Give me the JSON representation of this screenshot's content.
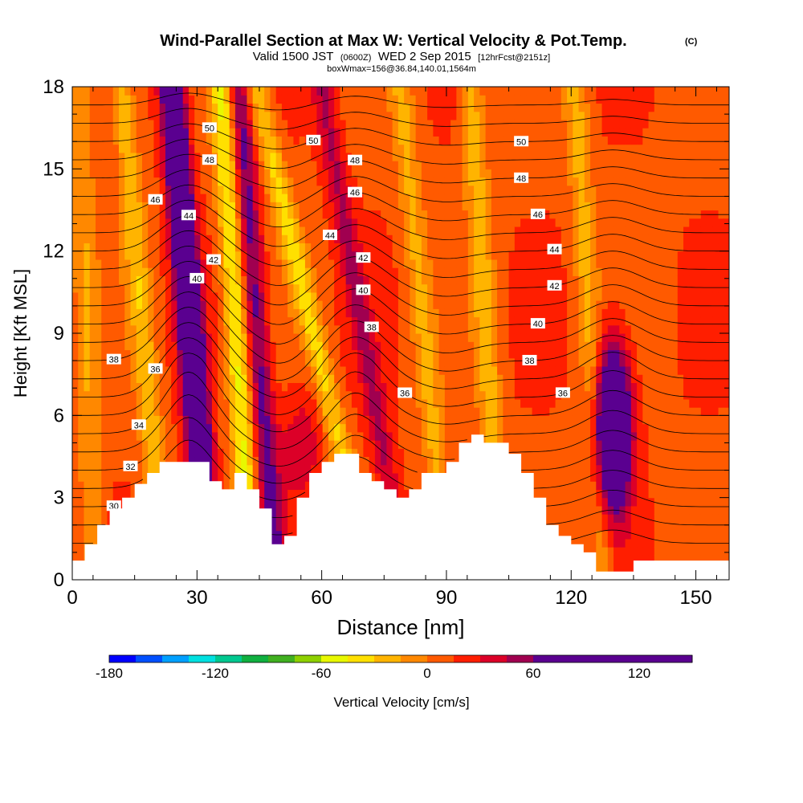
{
  "chart_data": {
    "type": "heatmap",
    "title": "Wind-Parallel Section at Max W: Vertical Velocity & Pot.Temp.",
    "title_mark": "(C)",
    "subtitle": {
      "valid": "Valid 1500 JST",
      "utc": "(0600Z)",
      "date": "WED 2 Sep 2015",
      "fcst": "[12hrFcst@2151z]"
    },
    "box_info": "boxWmax=156@36.84,140.01,1564m",
    "xlabel": "Distance [nm]",
    "ylabel": "Height [Kft MSL]",
    "xlim": [
      0,
      158
    ],
    "ylim": [
      0,
      18
    ],
    "xticks": [
      "0",
      "30",
      "60",
      "90",
      "120",
      "150"
    ],
    "yticks": [
      "0",
      "3",
      "6",
      "9",
      "12",
      "15",
      "18"
    ],
    "colorbar": {
      "label": "Vertical Velocity [cm/s]",
      "range": [
        -180,
        150
      ],
      "step": 15,
      "tick_labels": [
        "-180",
        "-120",
        "-60",
        "0",
        "60",
        "120"
      ],
      "colors": [
        "#0000ff",
        "#0050ff",
        "#00a0ff",
        "#00e0e0",
        "#00c890",
        "#10b040",
        "#40b020",
        "#8ed000",
        "#e8f800",
        "#ffe000",
        "#ffb400",
        "#ff8800",
        "#ff5a00",
        "#ff1e00",
        "#dc0028",
        "#a00050",
        "#5a0090"
      ]
    },
    "updrafts": [
      {
        "x": 26,
        "y": 15,
        "w": 150
      },
      {
        "x": 38,
        "y": 15,
        "w": 80
      },
      {
        "x": 65,
        "y": 13,
        "w": 55
      },
      {
        "x": 130,
        "y": 5.5,
        "w": 156
      }
    ],
    "downdrafts": [
      {
        "x": 22,
        "y": 7,
        "w": -70
      },
      {
        "x": 41,
        "y": 5,
        "w": -65
      },
      {
        "x": 48,
        "y": 16,
        "w": -65
      },
      {
        "x": 78,
        "y": 4.5,
        "w": -50
      },
      {
        "x": 100,
        "y": 15,
        "w": -40
      },
      {
        "x": 125,
        "y": 15,
        "w": -40
      },
      {
        "x": 4,
        "y": 13,
        "w": -30
      }
    ],
    "theta_contours": [
      "30",
      "32",
      "34",
      "36",
      "38",
      "40",
      "42",
      "44",
      "46",
      "48",
      "50"
    ],
    "terrain": {
      "x": [
        0,
        3,
        3,
        6,
        6,
        9,
        9,
        12,
        12,
        15,
        15,
        18,
        18,
        21,
        21,
        24,
        24,
        33,
        33,
        36,
        36,
        39,
        39,
        42,
        42,
        45,
        45,
        48,
        48,
        51,
        51,
        54,
        54,
        57,
        57,
        60,
        60,
        63,
        63,
        69,
        69,
        72,
        72,
        75,
        75,
        78,
        78,
        81,
        81,
        84,
        84,
        87,
        87,
        90,
        90,
        93,
        93,
        96,
        96,
        99,
        99,
        105,
        105,
        108,
        108,
        111,
        111,
        114,
        114,
        117,
        117,
        120,
        120,
        123,
        123,
        126,
        126,
        129,
        129,
        135,
        135,
        138,
        138,
        158
      ],
      "y": [
        0.7,
        0.7,
        1.3,
        1.3,
        2.0,
        2.0,
        2.6,
        2.6,
        3.0,
        3.0,
        3.5,
        3.5,
        3.9,
        3.9,
        4.3,
        4.3,
        4.3,
        4.3,
        3.6,
        3.6,
        3.3,
        3.3,
        3.9,
        3.9,
        3.3,
        3.3,
        2.6,
        2.6,
        1.3,
        1.3,
        1.6,
        1.6,
        3.0,
        3.0,
        3.9,
        3.9,
        4.3,
        4.3,
        4.6,
        4.6,
        3.9,
        3.9,
        3.6,
        3.6,
        3.3,
        3.3,
        3.0,
        3.0,
        3.3,
        3.3,
        3.9,
        3.9,
        3.9,
        3.9,
        4.3,
        4.3,
        5.0,
        5.0,
        5.3,
        5.3,
        5.0,
        5.0,
        4.6,
        4.6,
        3.9,
        3.9,
        3.0,
        3.0,
        2.0,
        2.0,
        1.6,
        1.6,
        1.3,
        1.3,
        1.0,
        1.0,
        0.3,
        0.3,
        0.3,
        0.3,
        0.7,
        0.7,
        0.7,
        0.7
      ]
    }
  }
}
